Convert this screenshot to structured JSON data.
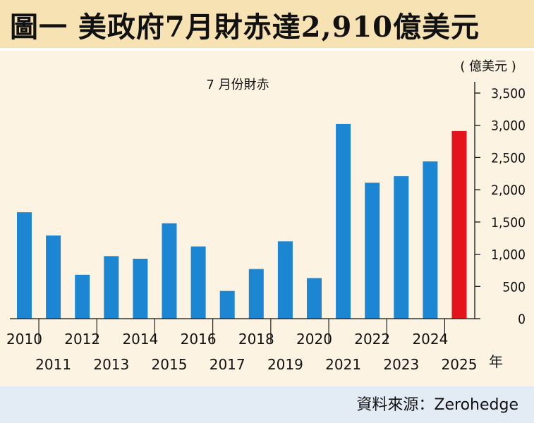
{
  "title": "圖一 美政府7月財赤達2,910億美元",
  "source": "資料來源：Zerohedge",
  "colors": {
    "bar": "#1c86d2",
    "highlight": "#e4141c"
  },
  "chart_data": {
    "type": "bar",
    "subtitle": "7 月份財赤",
    "ylabel": "( 億美元 )",
    "xlabel": "年",
    "ylim": [
      0,
      3500
    ],
    "yticks": [
      0,
      500,
      1000,
      1500,
      2000,
      2500,
      3000,
      3500
    ],
    "ytick_labels": [
      "0",
      "500",
      "1,000",
      "1,500",
      "2,000",
      "2,500",
      "3,000",
      "3,500"
    ],
    "categories": [
      "2010",
      "2011",
      "2012",
      "2013",
      "2014",
      "2015",
      "2016",
      "2017",
      "2018",
      "2019",
      "2020",
      "2021",
      "2022",
      "2023",
      "2024",
      "2025"
    ],
    "values": [
      1650,
      1290,
      680,
      970,
      930,
      1480,
      1120,
      430,
      770,
      1200,
      630,
      3020,
      2110,
      2210,
      2440,
      2910
    ],
    "highlight_index": 15
  }
}
